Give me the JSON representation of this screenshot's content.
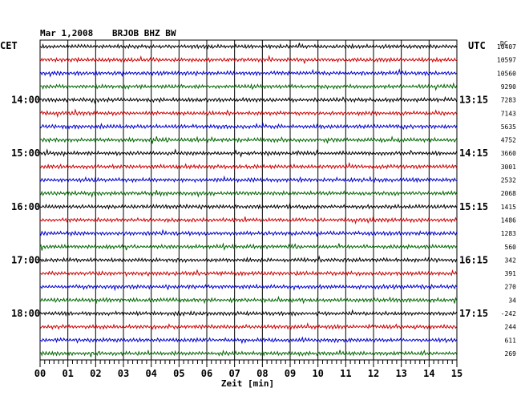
{
  "header": {
    "date": "Mar 1,2008",
    "station": "BRJOB BHZ BW",
    "left_zone": "CET",
    "right_zone": "UTC",
    "dc_label": "DC"
  },
  "chart_data": {
    "type": "line",
    "xlabel": "Zeit [min]",
    "x_ticks": [
      "00",
      "01",
      "02",
      "03",
      "04",
      "05",
      "06",
      "07",
      "08",
      "09",
      "10",
      "11",
      "12",
      "13",
      "14",
      "15"
    ],
    "xlim": [
      0,
      15
    ],
    "left_time_labels": [
      "14:00",
      "15:00",
      "16:00",
      "17:00",
      "18:00"
    ],
    "right_time_labels": [
      "13:15",
      "14:15",
      "15:15",
      "16:15",
      "17:15"
    ],
    "time_label_rows": [
      4,
      8,
      12,
      16,
      20
    ],
    "trace_colors": [
      "#000000",
      "#cc0000",
      "#0000cc",
      "#006600"
    ],
    "dc_offsets": [
      "10407",
      "10597",
      "10560",
      "9290",
      "7283",
      "7143",
      "5635",
      "4752",
      "3660",
      "3001",
      "2532",
      "2068",
      "1415",
      "1486",
      "1283",
      "560",
      "342",
      "391",
      "270",
      "34",
      "-242",
      "244",
      "611",
      "269"
    ],
    "grid": true
  }
}
